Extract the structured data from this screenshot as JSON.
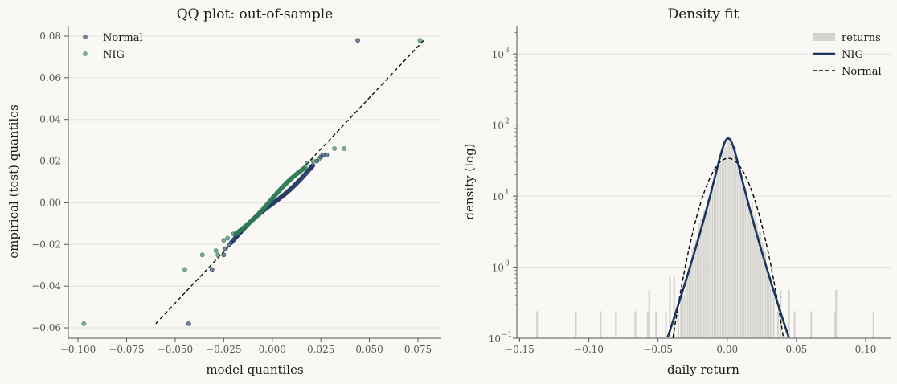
{
  "chart_data": [
    {
      "type": "scatter",
      "title": "QQ plot: out-of-sample",
      "xlabel": "model quantiles",
      "ylabel": "empirical (test) quantiles",
      "xlim": [
        -0.105,
        0.087
      ],
      "ylim": [
        -0.065,
        0.085
      ],
      "x_ticks": [
        "−0.100",
        "−0.075",
        "−0.050",
        "−0.025",
        "0.000",
        "0.025",
        "0.050",
        "0.075"
      ],
      "x_tick_values": [
        -0.1,
        -0.075,
        -0.05,
        -0.025,
        0.0,
        0.025,
        0.05,
        0.075
      ],
      "y_ticks": [
        "−0.06",
        "−0.04",
        "−0.02",
        "0.00",
        "0.02",
        "0.04",
        "0.06",
        "0.08"
      ],
      "y_tick_values": [
        -0.06,
        -0.04,
        -0.02,
        0.0,
        0.02,
        0.04,
        0.06,
        0.08
      ],
      "grid": "horizontal",
      "legend_position": "top-left",
      "reference_line": {
        "x": [
          -0.06,
          0.078
        ],
        "y": [
          -0.058,
          0.078
        ],
        "style": "dashed",
        "color": "#000000"
      },
      "series": [
        {
          "name": "Normal",
          "color": "#1c3461",
          "outliers": [
            [
              -0.043,
              -0.058
            ],
            [
              -0.031,
              -0.032
            ],
            [
              -0.025,
              -0.025
            ],
            [
              0.044,
              0.078
            ]
          ],
          "tail_points": [
            [
              -0.024,
              -0.022
            ],
            [
              -0.022,
              -0.02
            ],
            [
              0.02,
              0.017
            ],
            [
              0.023,
              0.02
            ],
            [
              0.025,
              0.022
            ],
            [
              0.026,
              0.023
            ],
            [
              0.028,
              0.023
            ]
          ],
          "body_segment": {
            "x": [
              -0.021,
              0.021
            ],
            "y": [
              -0.019,
              0.018
            ]
          }
        },
        {
          "name": "NIG",
          "color": "#2d7a56",
          "outliers": [
            [
              -0.097,
              -0.058
            ],
            [
              -0.045,
              -0.032
            ],
            [
              -0.036,
              -0.025
            ],
            [
              -0.029,
              -0.023
            ],
            [
              -0.028,
              -0.025
            ],
            [
              0.032,
              0.026
            ],
            [
              0.037,
              0.026
            ],
            [
              0.076,
              0.078
            ]
          ],
          "tail_points": [
            [
              -0.025,
              -0.018
            ],
            [
              -0.023,
              -0.017
            ],
            [
              -0.02,
              -0.015
            ],
            [
              0.018,
              0.019
            ],
            [
              0.021,
              0.02
            ],
            [
              0.024,
              0.021
            ]
          ],
          "body_segment": {
            "x": [
              -0.019,
              0.017
            ],
            "y": [
              -0.015,
              0.017
            ]
          }
        }
      ]
    },
    {
      "type": "area",
      "title": "Density fit",
      "xlabel": "daily return",
      "ylabel": "density (log)",
      "xlim": [
        -0.152,
        0.118
      ],
      "ylim": [
        0.1,
        2500
      ],
      "y_scale": "log",
      "x_ticks": [
        "−0.15",
        "−0.10",
        "−0.05",
        "0.00",
        "0.05",
        "0.10"
      ],
      "x_tick_values": [
        -0.15,
        -0.1,
        -0.05,
        0.0,
        0.05,
        0.1
      ],
      "y_ticks": [
        {
          "value": 0.1,
          "base": "10",
          "exp": "−1"
        },
        {
          "value": 1,
          "base": "10",
          "exp": "0"
        },
        {
          "value": 10,
          "base": "10",
          "exp": "1"
        },
        {
          "value": 100,
          "base": "10",
          "exp": "2"
        },
        {
          "value": 1000,
          "base": "10",
          "exp": "3"
        }
      ],
      "grid": "horizontal",
      "legend_position": "top-right",
      "series": [
        {
          "name": "returns",
          "kind": "histogram",
          "color": "#d6d4cf",
          "bin_width": 0.0012
        },
        {
          "name": "NIG",
          "kind": "line",
          "color": "#1c3461",
          "peak": 65,
          "center": 0.0007
        },
        {
          "name": "Normal",
          "kind": "dashed-line",
          "color": "#000000",
          "peak": 34,
          "center": 0.0007,
          "sd": 0.0117
        }
      ]
    }
  ]
}
